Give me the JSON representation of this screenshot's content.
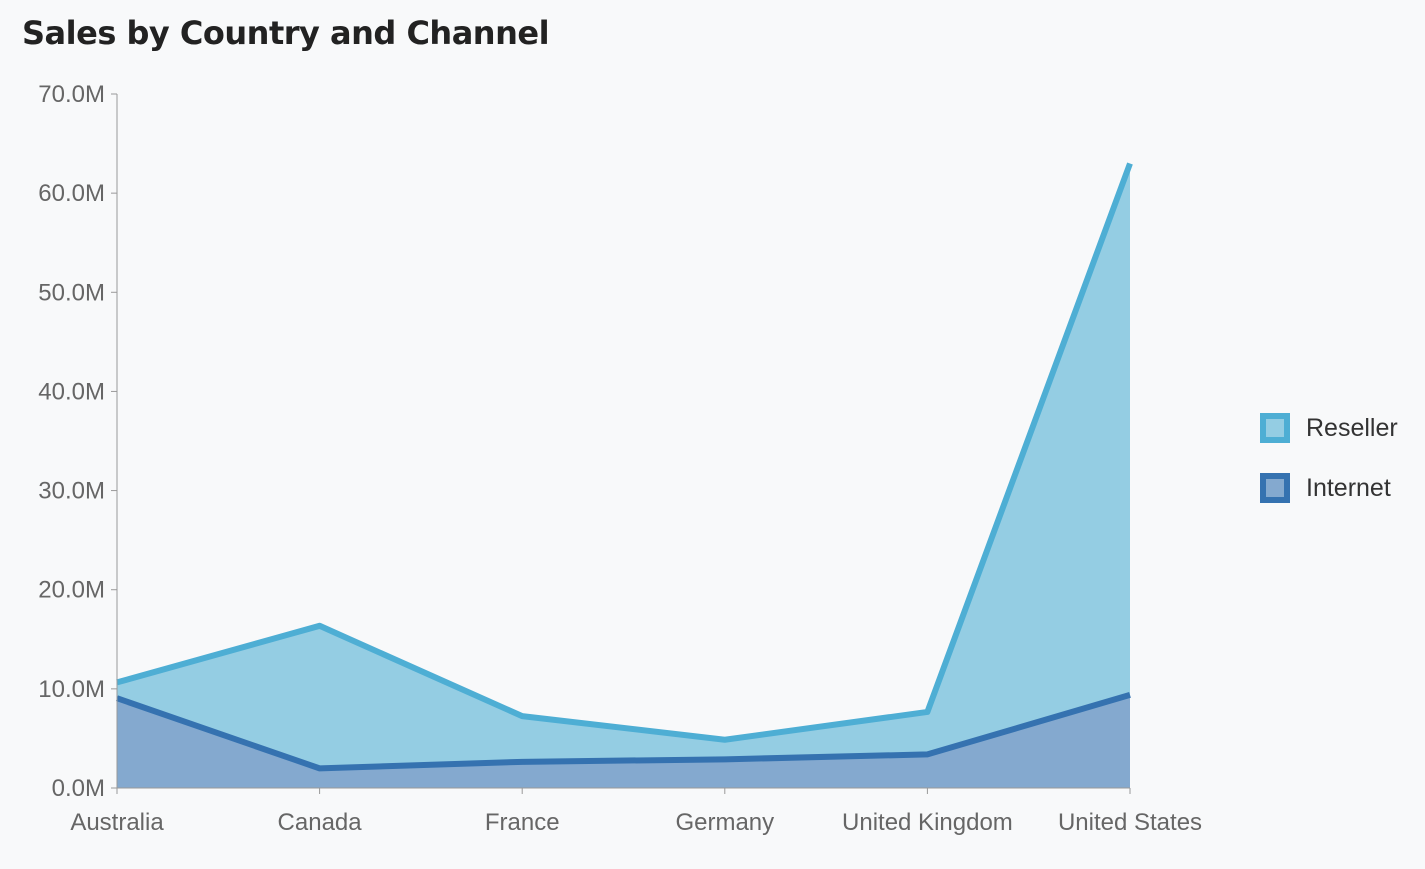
{
  "chart_data": {
    "type": "area",
    "stacked": true,
    "title": "Sales by Country and Channel",
    "xlabel": "",
    "ylabel": "",
    "categories": [
      "Australia",
      "Canada",
      "France",
      "Germany",
      "United Kingdom",
      "United States"
    ],
    "series": [
      {
        "name": "Internet",
        "values": [
          9.06,
          1.98,
          2.64,
          2.89,
          3.39,
          9.39
        ],
        "color": "#3572b0",
        "fill": "#84a9cf"
      },
      {
        "name": "Reseller",
        "values": [
          1.59,
          14.38,
          4.61,
          1.98,
          4.28,
          53.6
        ],
        "color": "#4eaed4",
        "fill": "#94cde3"
      }
    ],
    "ylim": [
      0,
      70
    ],
    "yticks": [
      "0.0M",
      "10.0M",
      "20.0M",
      "30.0M",
      "40.0M",
      "50.0M",
      "60.0M",
      "70.0M"
    ],
    "unit": "M",
    "legend_position": "right",
    "legend": [
      "Reseller",
      "Internet"
    ],
    "grid": false
  }
}
